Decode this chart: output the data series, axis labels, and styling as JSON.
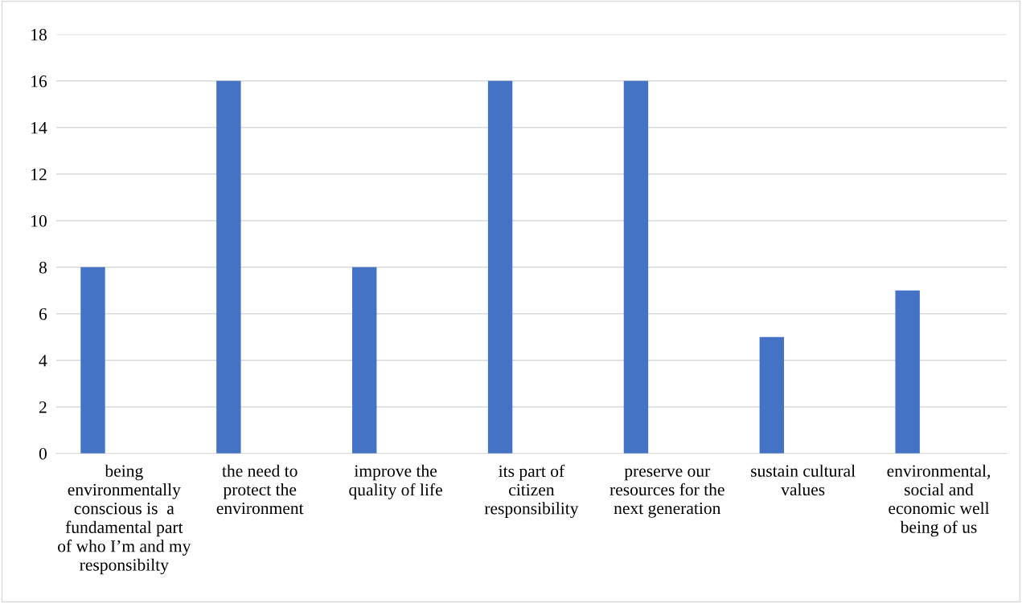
{
  "chart_data": {
    "type": "bar",
    "categories": [
      "being environmentally conscious is  a fundamental part of who I’m and my responsibilty",
      "the need to protect the environment",
      "improve the quality of life",
      "its part of citizen responsibility",
      "preserve our resources for the next generation",
      "sustain cultural values",
      "environmental, social and economic well being of us"
    ],
    "values": [
      8,
      16,
      8,
      16,
      16,
      5,
      7
    ],
    "color": "#4472c4",
    "ylim": [
      0,
      18
    ],
    "yticks": [
      0,
      2,
      4,
      6,
      8,
      10,
      12,
      14,
      16,
      18
    ],
    "grid": "y",
    "legend": false
  }
}
